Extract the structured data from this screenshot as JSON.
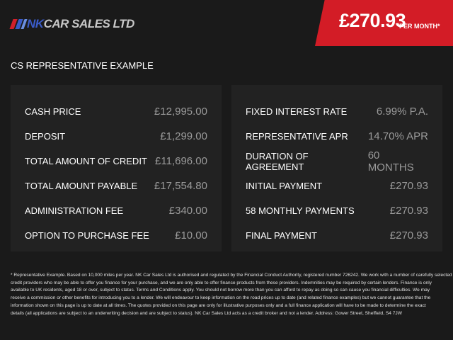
{
  "header": {
    "logo_text": "NK CAR SALES LTD",
    "logo_nk": "NK",
    "logo_rest": "CAR SALES LTD",
    "monthly_price": "£270.93",
    "per_month_label": "PER MONTH*"
  },
  "section_title": "CS REPRESENTATIVE EXAMPLE",
  "left_rows": [
    {
      "label": "CASH PRICE",
      "value": "£12,995.00"
    },
    {
      "label": "DEPOSIT",
      "value": "£1,299.00"
    },
    {
      "label": "TOTAL AMOUNT OF CREDIT",
      "value": "£11,696.00"
    },
    {
      "label": "TOTAL AMOUNT PAYABLE",
      "value": "£17,554.80"
    },
    {
      "label": "ADMINISTRATION FEE",
      "value": "£340.00"
    },
    {
      "label": "OPTION TO PURCHASE FEE",
      "value": "£10.00"
    }
  ],
  "right_rows": [
    {
      "label": "FIXED INTEREST RATE",
      "value": "6.99% P.A."
    },
    {
      "label": "REPRESENTATIVE APR",
      "value": "14.70% APR"
    },
    {
      "label": "DURATION OF AGREEMENT",
      "value": "60 MONTHS"
    },
    {
      "label": "INITIAL PAYMENT",
      "value": "£270.93"
    },
    {
      "label": "58 MONTHLY PAYMENTS",
      "value": "£270.93"
    },
    {
      "label": "FINAL PAYMENT",
      "value": "£270.93"
    }
  ],
  "footnote_lines": [
    "* Representative Example. Based on 10,000 miles per year. NK Car Sales Ltd is authorised and regulated by the Financial Conduct Authority, registered number 726242. We work with a number of carefully selected",
    "credit providers who may be able to offer you finance for your purchase, and we are only able to offer finance products from these providers. Indemnities may be required by certain lenders. Finance is only",
    "available to UK residents, aged 18 or over, subject to status. Terms and Conditions apply. You should not borrow more than you can afford to repay as doing so can cause you financial difficulties. We may",
    "receive a commission or other benefits for introducing you to a lender. We will endeavour to keep information on the road prices up to date (and related finance examples) but we cannot guarantee that the",
    "information shown on this page is up to date at all times. The quotes provided on this page are only for illustrative purposes only and a full finance application will have to be made to determine the exact",
    "details (all applications are subject to an underwriting decision and are subject to status). NK Car Sales Ltd acts as a credit broker and not a lender. Address: Gower Street, Sheffield, S4 7JW"
  ],
  "colors": {
    "accent": "#d31c26",
    "background": "#1a1a1a",
    "panel": "#222222"
  }
}
